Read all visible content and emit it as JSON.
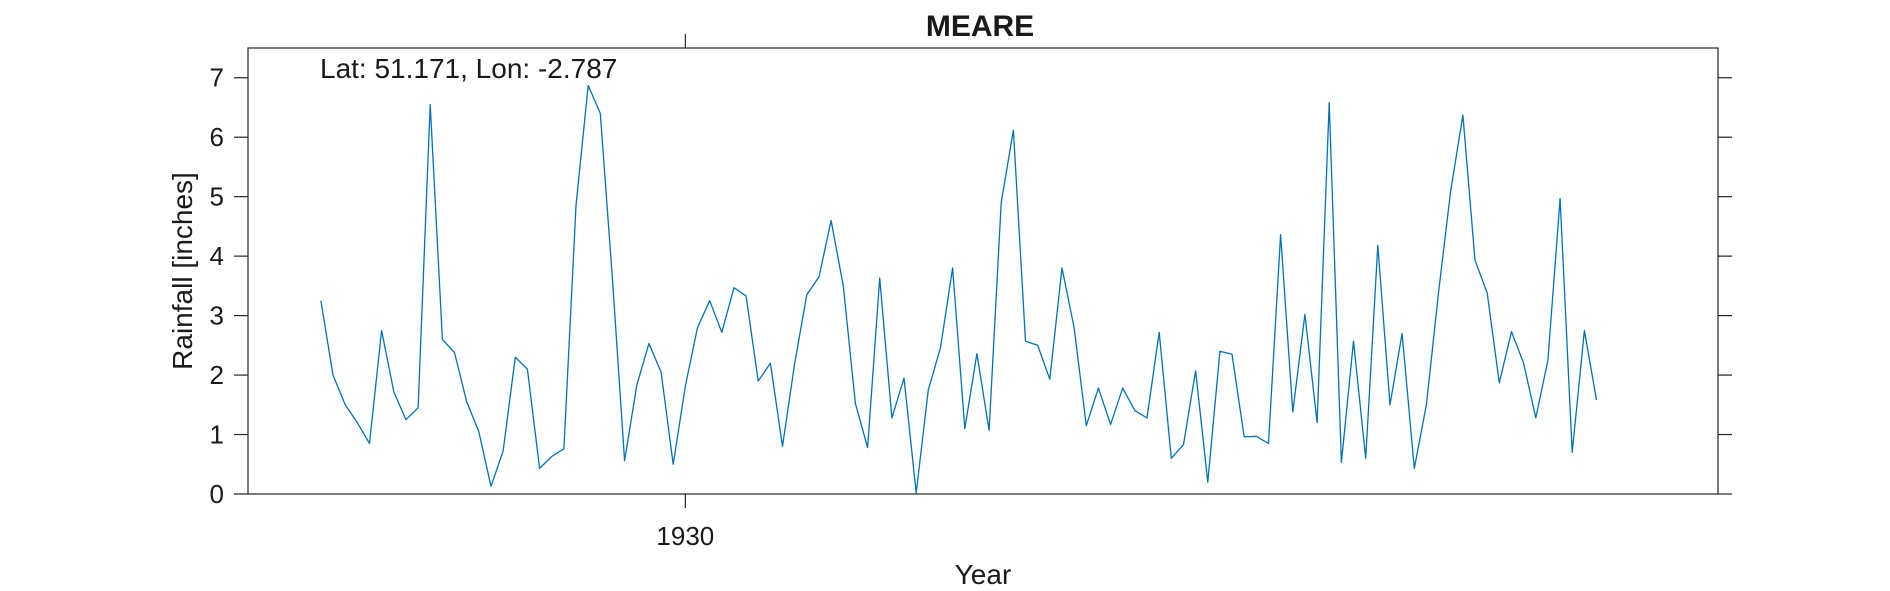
{
  "chart_data": {
    "type": "line",
    "title": "MEARE",
    "xlabel": "Year",
    "ylabel": "Rainfall [inches]",
    "annotation": "Lat: 51.171, Lon: -2.787",
    "x_ticks": [
      {
        "value": 1930,
        "label": "1930"
      }
    ],
    "y_ticks": [
      0,
      1,
      2,
      3,
      4,
      5,
      6,
      7
    ],
    "xlim": [
      1894,
      2015
    ],
    "ylim": [
      0,
      7.5
    ],
    "grid": false,
    "legend": "none",
    "series": [
      {
        "color": "#0072bd",
        "x_start": 1900,
        "x_step": 1,
        "values": [
          3.25,
          2.0,
          1.5,
          1.2,
          0.85,
          2.75,
          1.72,
          1.25,
          1.45,
          6.55,
          2.6,
          2.38,
          1.55,
          1.05,
          0.13,
          0.72,
          2.3,
          2.1,
          0.43,
          0.63,
          0.76,
          4.85,
          6.87,
          6.4,
          3.6,
          0.56,
          1.83,
          2.53,
          2.05,
          0.5,
          1.82,
          2.8,
          3.25,
          2.72,
          3.47,
          3.33,
          1.9,
          2.2,
          0.8,
          2.2,
          3.35,
          3.65,
          4.6,
          3.5,
          1.52,
          0.78,
          3.63,
          1.28,
          1.95,
          0.02,
          1.75,
          2.46,
          3.8,
          1.1,
          2.36,
          1.07,
          4.9,
          6.12,
          2.57,
          2.5,
          1.93,
          3.8,
          2.8,
          1.15,
          1.78,
          1.17,
          1.78,
          1.4,
          1.28,
          2.72,
          0.6,
          0.83,
          2.07,
          0.2,
          2.4,
          2.35,
          0.96,
          0.97,
          0.85,
          4.36,
          1.38,
          3.02,
          1.2,
          6.58,
          0.53,
          2.57,
          0.6,
          4.18,
          1.5,
          2.7,
          0.43,
          1.5,
          3.4,
          5.1,
          6.37,
          3.93,
          3.38,
          1.87,
          2.73,
          2.2,
          1.28,
          2.25,
          4.97,
          0.7,
          2.75,
          1.58
        ]
      }
    ]
  }
}
